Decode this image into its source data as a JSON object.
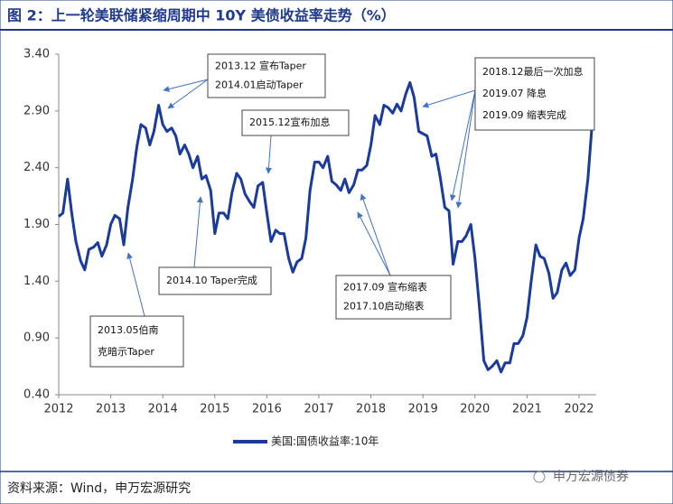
{
  "chart_data": {
    "type": "line",
    "title": "图 2：上一轮美联储紧缩周期中 10Y 美债收益率走势（%）",
    "source": "资料来源：Wind，申万宏源研究",
    "watermark": "申万宏源债券",
    "xlim": [
      2012,
      2022.33
    ],
    "xticks": [
      2012,
      2013,
      2014,
      2015,
      2016,
      2017,
      2018,
      2019,
      2020,
      2021,
      2022
    ],
    "ylim": [
      0.4,
      3.4
    ],
    "yticks": [
      {
        "value": 0.4,
        "label": "0.40"
      },
      {
        "value": 0.9,
        "label": "0.90"
      },
      {
        "value": 1.4,
        "label": "1.40"
      },
      {
        "value": 1.9,
        "label": "1.90"
      },
      {
        "value": 2.4,
        "label": "2.40"
      },
      {
        "value": 2.9,
        "label": "2.90"
      },
      {
        "value": 3.4,
        "label": "3.40"
      }
    ],
    "legend": "bottom",
    "annotations": [
      {
        "lines": [
          "2013.12 宣布Taper",
          "2014.01启动Taper"
        ]
      },
      {
        "lines": [
          "2015.12宣布加息"
        ]
      },
      {
        "lines": [
          "2014.10 Taper完成"
        ]
      },
      {
        "lines": [
          "2013.05伯南",
          "克暗示Taper"
        ]
      },
      {
        "lines": [
          "2017.09 宣布缩表",
          "2017.10启动缩表"
        ]
      },
      {
        "lines": [
          "2018.12最后一次加息",
          "2019.07 降息",
          "2019.09 缩表完成"
        ]
      }
    ],
    "x": [
      2012,
      2012.08,
      2012.17,
      2012.25,
      2012.33,
      2012.42,
      2012.5,
      2012.58,
      2012.67,
      2012.75,
      2012.83,
      2012.92,
      2013,
      2013.08,
      2013.17,
      2013.25,
      2013.33,
      2013.42,
      2013.5,
      2013.58,
      2013.67,
      2013.75,
      2013.83,
      2013.92,
      2014,
      2014.08,
      2014.17,
      2014.25,
      2014.33,
      2014.42,
      2014.5,
      2014.58,
      2014.67,
      2014.75,
      2014.83,
      2014.92,
      2015,
      2015.08,
      2015.17,
      2015.25,
      2015.33,
      2015.42,
      2015.5,
      2015.58,
      2015.67,
      2015.75,
      2015.83,
      2015.92,
      2016,
      2016.08,
      2016.17,
      2016.25,
      2016.33,
      2016.42,
      2016.5,
      2016.58,
      2016.67,
      2016.75,
      2016.83,
      2016.92,
      2017,
      2017.08,
      2017.17,
      2017.25,
      2017.33,
      2017.42,
      2017.5,
      2017.58,
      2017.67,
      2017.75,
      2017.83,
      2017.92,
      2018,
      2018.08,
      2018.17,
      2018.25,
      2018.33,
      2018.42,
      2018.5,
      2018.58,
      2018.67,
      2018.75,
      2018.83,
      2018.92,
      2019,
      2019.08,
      2019.17,
      2019.25,
      2019.33,
      2019.42,
      2019.5,
      2019.58,
      2019.67,
      2019.75,
      2019.83,
      2019.92,
      2020,
      2020.08,
      2020.17,
      2020.25,
      2020.33,
      2020.42,
      2020.5,
      2020.58,
      2020.67,
      2020.75,
      2020.83,
      2020.92,
      2021,
      2021.08,
      2021.17,
      2021.25,
      2021.33,
      2021.42,
      2021.5,
      2021.58,
      2021.67,
      2021.75,
      2021.83,
      2021.92,
      2022,
      2022.08,
      2022.17,
      2022.25
    ],
    "series": [
      {
        "name": "美国:国债收益率:10年",
        "color": "#1a3a9c",
        "values": [
          1.97,
          2.0,
          2.3,
          2.0,
          1.75,
          1.58,
          1.5,
          1.68,
          1.7,
          1.74,
          1.62,
          1.72,
          1.9,
          1.98,
          1.95,
          1.72,
          2.05,
          2.3,
          2.58,
          2.78,
          2.75,
          2.6,
          2.72,
          2.95,
          2.78,
          2.72,
          2.75,
          2.68,
          2.52,
          2.6,
          2.52,
          2.4,
          2.5,
          2.3,
          2.33,
          2.2,
          1.82,
          2.0,
          2.0,
          1.95,
          2.18,
          2.35,
          2.3,
          2.17,
          2.1,
          2.05,
          2.24,
          2.27,
          2.0,
          1.75,
          1.85,
          1.82,
          1.82,
          1.6,
          1.48,
          1.57,
          1.6,
          1.78,
          2.2,
          2.45,
          2.45,
          2.4,
          2.5,
          2.28,
          2.25,
          2.2,
          2.3,
          2.18,
          2.25,
          2.38,
          2.38,
          2.42,
          2.6,
          2.86,
          2.78,
          2.95,
          2.93,
          2.88,
          2.96,
          2.9,
          3.05,
          3.15,
          3.02,
          2.72,
          2.7,
          2.68,
          2.5,
          2.52,
          2.32,
          2.05,
          2.02,
          1.55,
          1.75,
          1.75,
          1.8,
          1.9,
          1.6,
          1.2,
          0.7,
          0.62,
          0.65,
          0.7,
          0.6,
          0.68,
          0.68,
          0.85,
          0.85,
          0.92,
          1.08,
          1.4,
          1.72,
          1.62,
          1.6,
          1.47,
          1.25,
          1.3,
          1.5,
          1.56,
          1.45,
          1.5,
          1.78,
          1.95,
          2.3,
          2.78
        ]
      }
    ]
  }
}
